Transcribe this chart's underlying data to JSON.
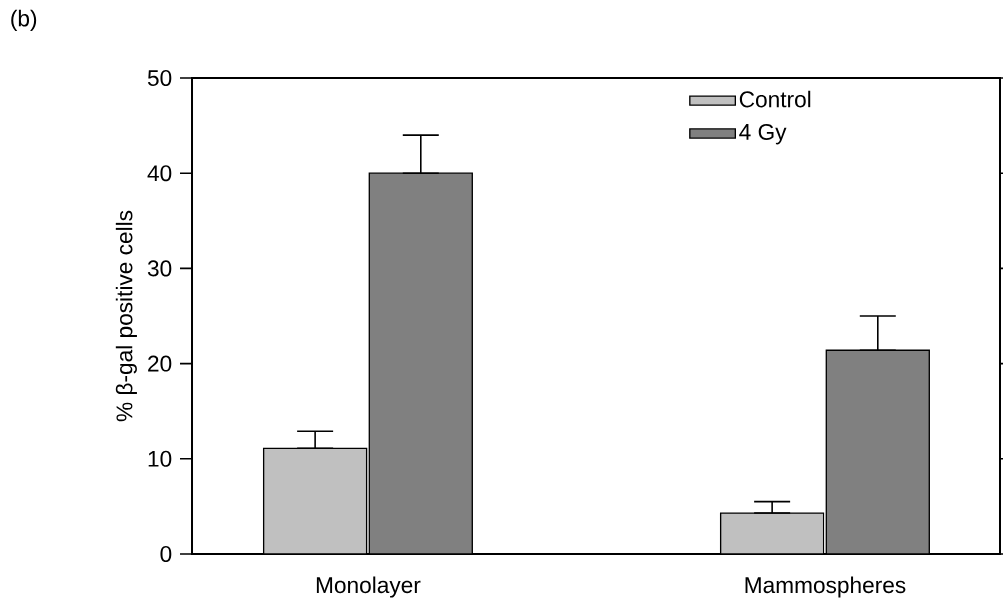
{
  "chart_data": {
    "type": "bar",
    "ylabel": "% β-gal positive cells",
    "annotations": [
      "(b)"
    ],
    "categories": [
      "Monolayer",
      "Mammospheres"
    ],
    "series": [
      {
        "name": "Control",
        "color": "#c0c0c0",
        "values": [
          11.1,
          4.3
        ],
        "errors": [
          [
            11.1,
            12.9
          ],
          [
            4.3,
            5.5
          ]
        ]
      },
      {
        "name": "4 Gy",
        "color": "#808080",
        "values": [
          40.0,
          21.4
        ],
        "errors": [
          [
            40.0,
            44.0
          ],
          [
            21.4,
            25.0
          ]
        ]
      }
    ],
    "ylim": [
      0,
      50
    ],
    "yticks": [
      0,
      10,
      20,
      30,
      40,
      50
    ],
    "grid": false,
    "legend": "top right"
  }
}
